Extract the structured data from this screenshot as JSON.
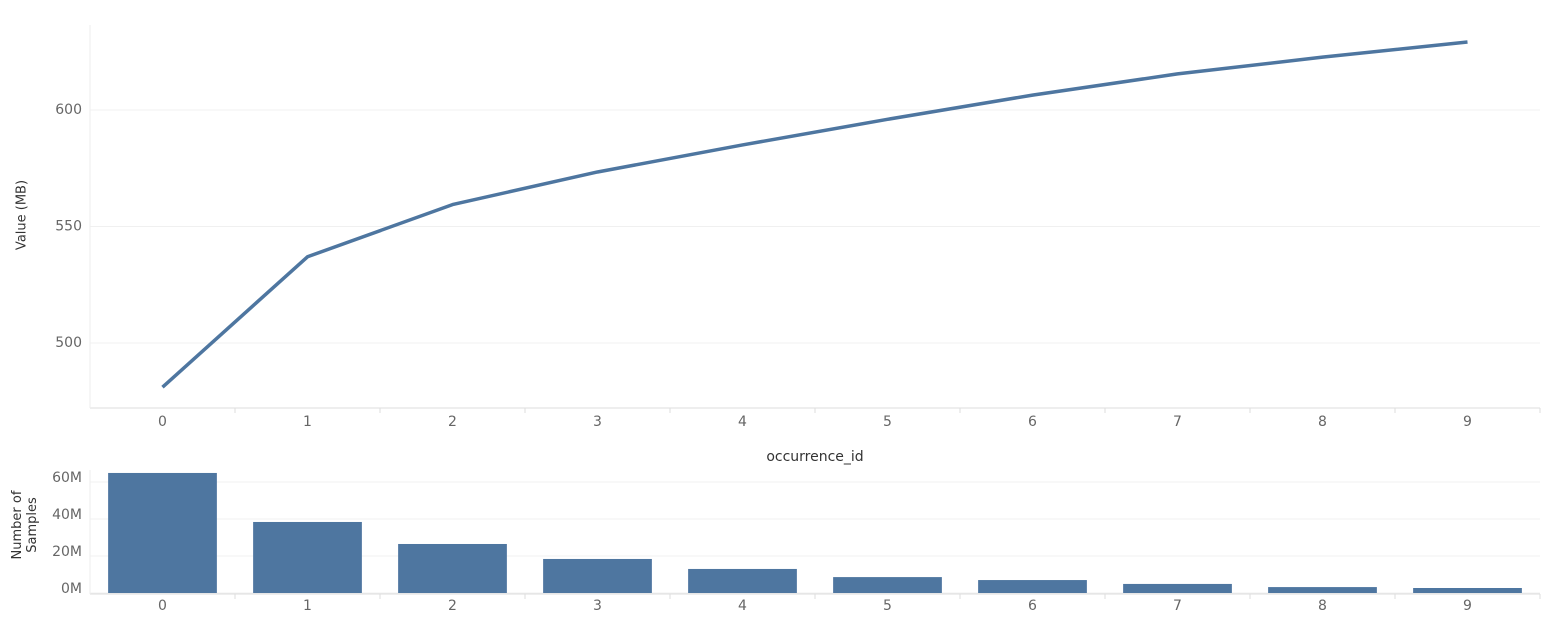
{
  "chart_data": [
    {
      "type": "line",
      "ylabel": "Value (MB)",
      "xlabel": "occurrence_id",
      "categories": [
        "0",
        "1",
        "2",
        "3",
        "4",
        "5",
        "6",
        "7",
        "8",
        "9"
      ],
      "values": [
        481,
        537,
        559.4,
        573.4,
        585,
        596,
        606.4,
        615.5,
        622.7,
        629.2
      ],
      "color": "#4e76a0",
      "ylim": [
        472.5,
        636.5
      ],
      "yticks": [
        500,
        550,
        600
      ],
      "grid": true
    },
    {
      "type": "bar",
      "ylabel": "Number of Samples",
      "categories": [
        "0",
        "1",
        "2",
        "3",
        "4",
        "5",
        "6",
        "7",
        "8",
        "9"
      ],
      "values": [
        64900000,
        38400000,
        26500000,
        18400000,
        13000000,
        8600000,
        7000000,
        4900000,
        3200000,
        2700000
      ],
      "color": "#4e76a0",
      "ylim": [
        0,
        66500000
      ],
      "yticks": [
        {
          "value": 0,
          "label": "0M"
        },
        {
          "value": 20000000,
          "label": "20M"
        },
        {
          "value": 40000000,
          "label": "40M"
        },
        {
          "value": 60000000,
          "label": "60M"
        }
      ],
      "grid": true
    }
  ]
}
